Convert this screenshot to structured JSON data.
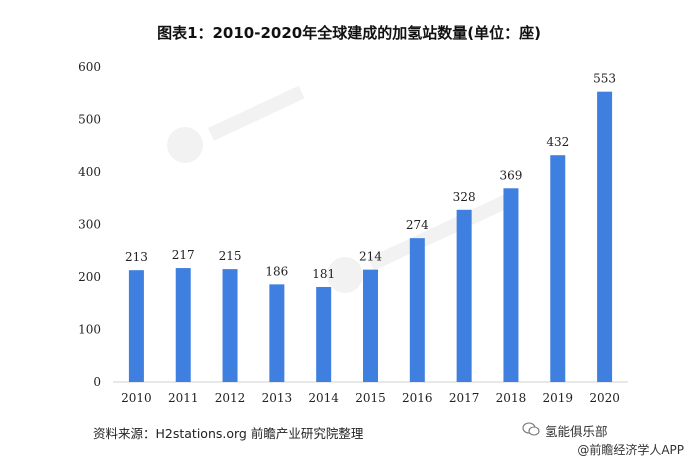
{
  "chart_data": {
    "type": "bar",
    "title": "图表1：2010-2020年全球建成的加氢站数量(单位：座)",
    "categories": [
      "2010",
      "2011",
      "2012",
      "2013",
      "2014",
      "2015",
      "2016",
      "2017",
      "2018",
      "2019",
      "2020"
    ],
    "values": [
      213,
      217,
      215,
      186,
      181,
      214,
      274,
      328,
      369,
      432,
      553
    ],
    "ylim": [
      0,
      600
    ],
    "yticks": [
      0,
      100,
      200,
      300,
      400,
      500,
      600
    ],
    "grid": false,
    "bar_color": "#3F7FDF",
    "data_labels": true
  },
  "source": "资料来源：H2stations.org  前瞻产业研究院整理",
  "footer": {
    "club": "氢能俱乐部",
    "app": "@前瞻经济学人APP"
  }
}
